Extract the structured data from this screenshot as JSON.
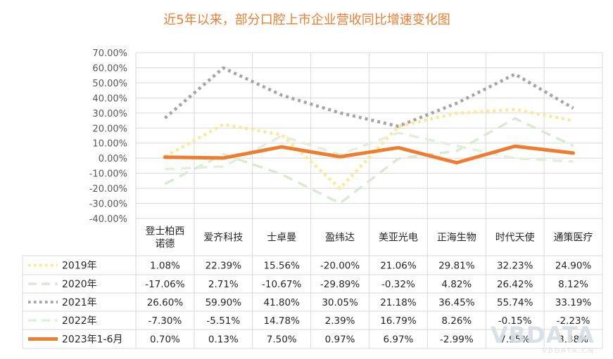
{
  "chart_data": {
    "type": "line",
    "title": "近5年以来，部分口腔上市企业营收同比增速变化图",
    "xlabel": "",
    "ylabel": "",
    "ylim": [
      -0.4,
      0.7
    ],
    "yticks": [
      "70.00%",
      "60.00%",
      "50.00%",
      "40.00%",
      "30.00%",
      "20.00%",
      "10.00%",
      "0.00%",
      "-10.00%",
      "-20.00%",
      "-30.00%",
      "-40.00%"
    ],
    "ytick_values": [
      0.7,
      0.6,
      0.5,
      0.4,
      0.3,
      0.2,
      0.1,
      0.0,
      -0.1,
      -0.2,
      -0.3,
      -0.4
    ],
    "grid": true,
    "legend": "data-table-left",
    "categories": [
      [
        "登士柏西",
        "诺德"
      ],
      [
        "爱齐科技"
      ],
      [
        "士卓曼"
      ],
      [
        "盈纬达"
      ],
      [
        "美亚光电"
      ],
      [
        "正海生物"
      ],
      [
        "时代天使"
      ],
      [
        "通策医疗"
      ]
    ],
    "series": [
      {
        "name": "2019年",
        "color": "#ffe699",
        "dash": "dotted",
        "values": [
          0.0108,
          0.2239,
          0.1556,
          -0.2,
          0.2106,
          0.2981,
          0.3223,
          0.249
        ],
        "labels": [
          "1.08%",
          "22.39%",
          "15.56%",
          "-20.00%",
          "21.06%",
          "29.81%",
          "32.23%",
          "24.90%"
        ]
      },
      {
        "name": "2020年",
        "color": "#d9ead3",
        "dash": "dashed",
        "values": [
          -0.1706,
          0.0271,
          -0.1067,
          -0.2989,
          -0.0032,
          0.0482,
          0.2642,
          0.0812
        ],
        "labels": [
          "-17.06%",
          "2.71%",
          "-10.67%",
          "-29.89%",
          "-0.32%",
          "4.82%",
          "26.42%",
          "8.12%"
        ]
      },
      {
        "name": "2021年",
        "color": "#a5a5a5",
        "dash": "dotted",
        "values": [
          0.266,
          0.599,
          0.418,
          0.3005,
          0.2118,
          0.3645,
          0.5574,
          0.3319
        ],
        "labels": [
          "26.60%",
          "59.90%",
          "41.80%",
          "30.05%",
          "21.18%",
          "36.45%",
          "55.74%",
          "33.19%"
        ]
      },
      {
        "name": "2022年",
        "color": "#e2efda",
        "dash": "dashed",
        "values": [
          -0.073,
          -0.0551,
          0.1478,
          0.0239,
          0.1679,
          0.0826,
          -0.0015,
          -0.0223
        ],
        "labels": [
          "-7.30%",
          "-5.51%",
          "14.78%",
          "2.39%",
          "16.79%",
          "8.26%",
          "-0.15%",
          "-2.23%"
        ]
      },
      {
        "name": "2023年1-6月",
        "color": "#ed7d31",
        "dash": "solid",
        "values": [
          0.007,
          0.0013,
          0.075,
          0.0097,
          0.0697,
          -0.0299,
          0.0795,
          0.0338
        ],
        "labels": [
          "0.70%",
          "0.13%",
          "7.50%",
          "0.97%",
          "6.97%",
          "-2.99%",
          "7.95%",
          "3.38%"
        ]
      }
    ]
  },
  "watermark": {
    "logo": "VBDATA",
    "url": "VBDATA.CN"
  }
}
